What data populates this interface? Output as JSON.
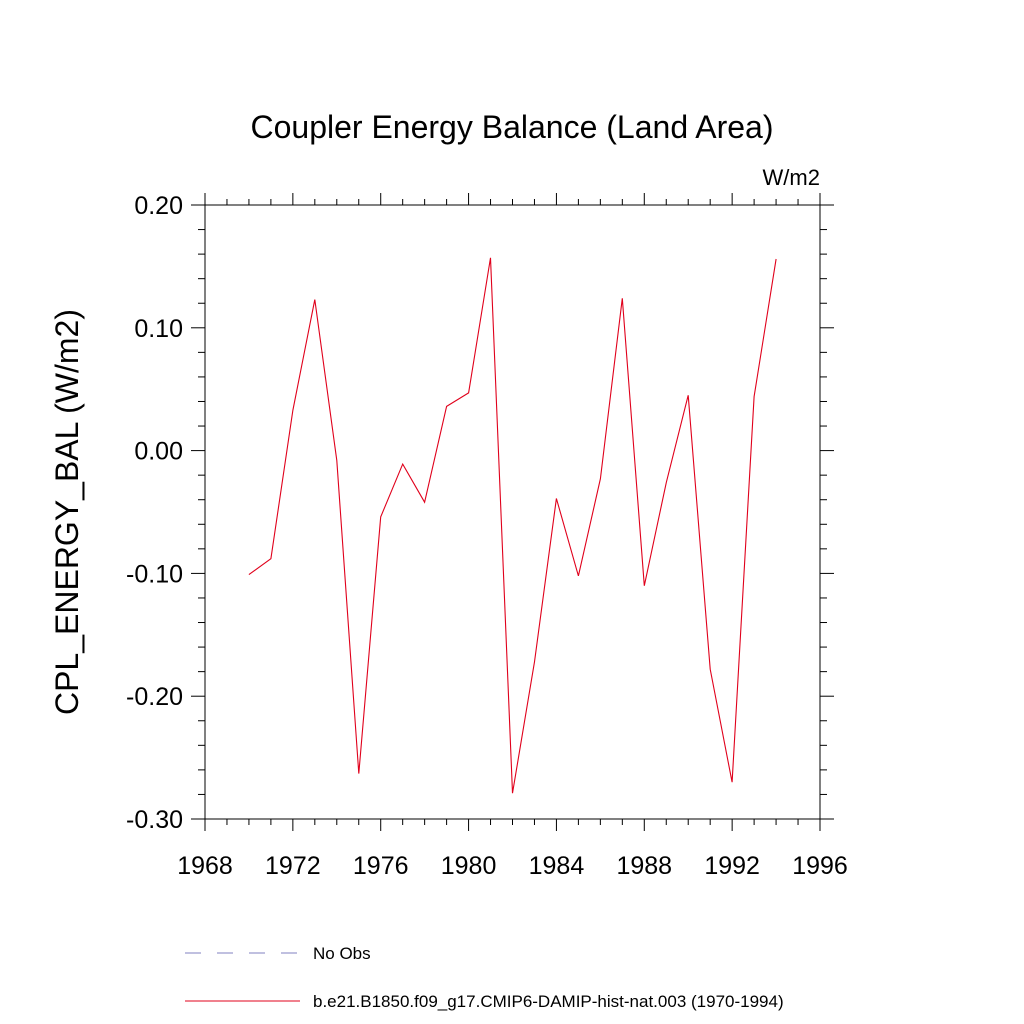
{
  "chart_data": {
    "type": "line",
    "title": "Coupler Energy Balance (Land Area)",
    "units_label": "W/m2",
    "xlabel": "",
    "ylabel": "CPL_ENERGY_BAL  (W/m2)",
    "xlim": [
      1968,
      1996
    ],
    "ylim": [
      -0.3,
      0.2
    ],
    "x_ticks": [
      1968,
      1972,
      1976,
      1980,
      1984,
      1988,
      1992,
      1996
    ],
    "x_tick_labels": [
      "1968",
      "1972",
      "1976",
      "1980",
      "1984",
      "1988",
      "1992",
      "1996"
    ],
    "y_ticks": [
      0.2,
      0.1,
      0.0,
      -0.1,
      -0.2,
      -0.3
    ],
    "y_tick_labels": [
      "0.20",
      "0.10",
      "0.00",
      "-0.10",
      "-0.20",
      "-0.30"
    ],
    "grid": false,
    "legend_position": "bottom",
    "series": [
      {
        "name": "b.e21.B1850.f09_g17.CMIP6-DAMIP-hist-nat.003 (1970-1994)",
        "color": "#e0001b",
        "line_style": "solid",
        "x": [
          1970,
          1971,
          1972,
          1973,
          1974,
          1975,
          1976,
          1977,
          1978,
          1979,
          1980,
          1981,
          1982,
          1983,
          1984,
          1985,
          1986,
          1987,
          1988,
          1989,
          1990,
          1991,
          1992,
          1993,
          1994
        ],
        "y": [
          -0.101,
          -0.088,
          0.033,
          0.123,
          -0.008,
          -0.263,
          -0.054,
          -0.011,
          -0.042,
          0.036,
          0.047,
          0.157,
          -0.279,
          -0.172,
          -0.039,
          -0.102,
          -0.023,
          0.124,
          -0.11,
          -0.026,
          0.045,
          -0.178,
          -0.27,
          0.044,
          0.156
        ]
      }
    ],
    "legend": [
      {
        "label": "No Obs",
        "color": "#8080c0",
        "line_style": "dashed"
      },
      {
        "label": "b.e21.B1850.f09_g17.CMIP6-DAMIP-hist-nat.003 (1970-1994)",
        "color": "#e0001b",
        "line_style": "solid"
      }
    ]
  }
}
